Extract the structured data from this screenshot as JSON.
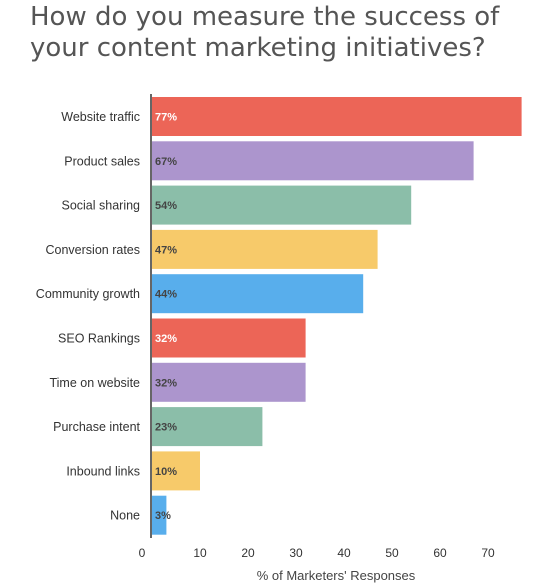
{
  "chart_data": {
    "type": "bar",
    "orientation": "horizontal",
    "title": "How do you measure the success of your content marketing initiatives?",
    "xlabel": "% of Marketers' Responses",
    "ylabel": "",
    "categories": [
      "Website traffic",
      "Product sales",
      "Social sharing",
      "Conversion rates",
      "Community growth",
      "SEO Rankings",
      "Time on website",
      "Purchase intent",
      "Inbound links",
      "None"
    ],
    "values": [
      77,
      67,
      54,
      47,
      44,
      32,
      32,
      23,
      10,
      3
    ],
    "bar_lengths": [
      77,
      67,
      54,
      47,
      44,
      32,
      32,
      23,
      10,
      3
    ],
    "value_labels": [
      "77%",
      "67%",
      "54%",
      "47%",
      "44%",
      "32%",
      "32%",
      "23%",
      "10%",
      "3%"
    ],
    "bar_colors": [
      "#ec6557",
      "#ac95cd",
      "#8bbea9",
      "#f7ca6a",
      "#58aeec",
      "#ec6557",
      "#ac95cd",
      "#8bbea9",
      "#f7ca6a",
      "#58aeec"
    ],
    "value_label_colors": [
      "#ffffff",
      "#444444",
      "#444444",
      "#444444",
      "#444444",
      "#ffffff",
      "#444444",
      "#444444",
      "#444444",
      "#444444"
    ],
    "x_ticks": [
      0,
      10,
      20,
      30,
      40,
      50,
      60,
      70
    ],
    "xlim": [
      0,
      80
    ],
    "grid": false,
    "legend": "none"
  }
}
